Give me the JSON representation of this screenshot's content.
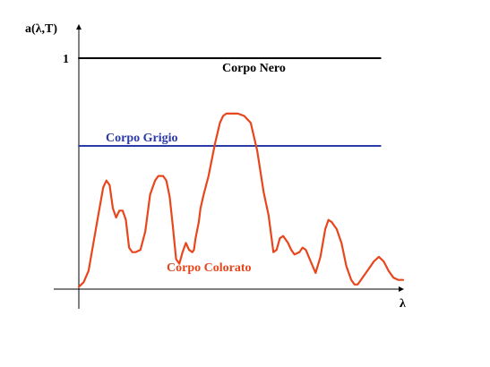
{
  "chart_data": {
    "type": "line",
    "ylabel": "a(λ,T)",
    "xlabel": "λ",
    "y_tick_label": "1",
    "xlim": [
      0,
      1
    ],
    "ylim": [
      0,
      1.12
    ],
    "grid": false,
    "series": [
      {
        "name": "Corpo Nero",
        "color": "#000000",
        "x": [
          0,
          0.93
        ],
        "y": [
          1.0,
          1.0
        ]
      },
      {
        "name": "Corpo Grigio",
        "color": "#2b3aa6",
        "x": [
          0,
          0.93
        ],
        "y": [
          0.62,
          0.62
        ]
      },
      {
        "name": "Corpo Colorato",
        "color": "#e8461c",
        "x": [
          0.0,
          0.015,
          0.03,
          0.045,
          0.06,
          0.075,
          0.085,
          0.095,
          0.105,
          0.115,
          0.125,
          0.135,
          0.145,
          0.155,
          0.165,
          0.175,
          0.19,
          0.205,
          0.22,
          0.235,
          0.245,
          0.26,
          0.27,
          0.28,
          0.29,
          0.3,
          0.31,
          0.32,
          0.33,
          0.34,
          0.35,
          0.355,
          0.36,
          0.37,
          0.375,
          0.385,
          0.4,
          0.42,
          0.435,
          0.445,
          0.455,
          0.465,
          0.475,
          0.49,
          0.51,
          0.53,
          0.55,
          0.57,
          0.585,
          0.6,
          0.61,
          0.62,
          0.63,
          0.635,
          0.645,
          0.655,
          0.665,
          0.68,
          0.69,
          0.7,
          0.715,
          0.73,
          0.745,
          0.76,
          0.77,
          0.78,
          0.795,
          0.81,
          0.825,
          0.84,
          0.85,
          0.86,
          0.87,
          0.88,
          0.89,
          0.9,
          0.91,
          0.925,
          0.94,
          0.955,
          0.97,
          0.985,
          1.0
        ],
        "y": [
          0.01,
          0.03,
          0.08,
          0.2,
          0.32,
          0.44,
          0.47,
          0.45,
          0.35,
          0.31,
          0.34,
          0.34,
          0.3,
          0.18,
          0.16,
          0.16,
          0.17,
          0.25,
          0.41,
          0.47,
          0.49,
          0.49,
          0.47,
          0.4,
          0.27,
          0.13,
          0.11,
          0.16,
          0.2,
          0.17,
          0.16,
          0.17,
          0.22,
          0.29,
          0.35,
          0.41,
          0.49,
          0.63,
          0.72,
          0.75,
          0.76,
          0.76,
          0.76,
          0.76,
          0.75,
          0.72,
          0.6,
          0.42,
          0.32,
          0.16,
          0.17,
          0.22,
          0.23,
          0.22,
          0.2,
          0.17,
          0.15,
          0.16,
          0.18,
          0.17,
          0.12,
          0.07,
          0.14,
          0.26,
          0.3,
          0.29,
          0.26,
          0.2,
          0.1,
          0.04,
          0.02,
          0.02,
          0.04,
          0.06,
          0.08,
          0.1,
          0.12,
          0.14,
          0.12,
          0.08,
          0.05,
          0.04,
          0.04
        ]
      }
    ]
  }
}
